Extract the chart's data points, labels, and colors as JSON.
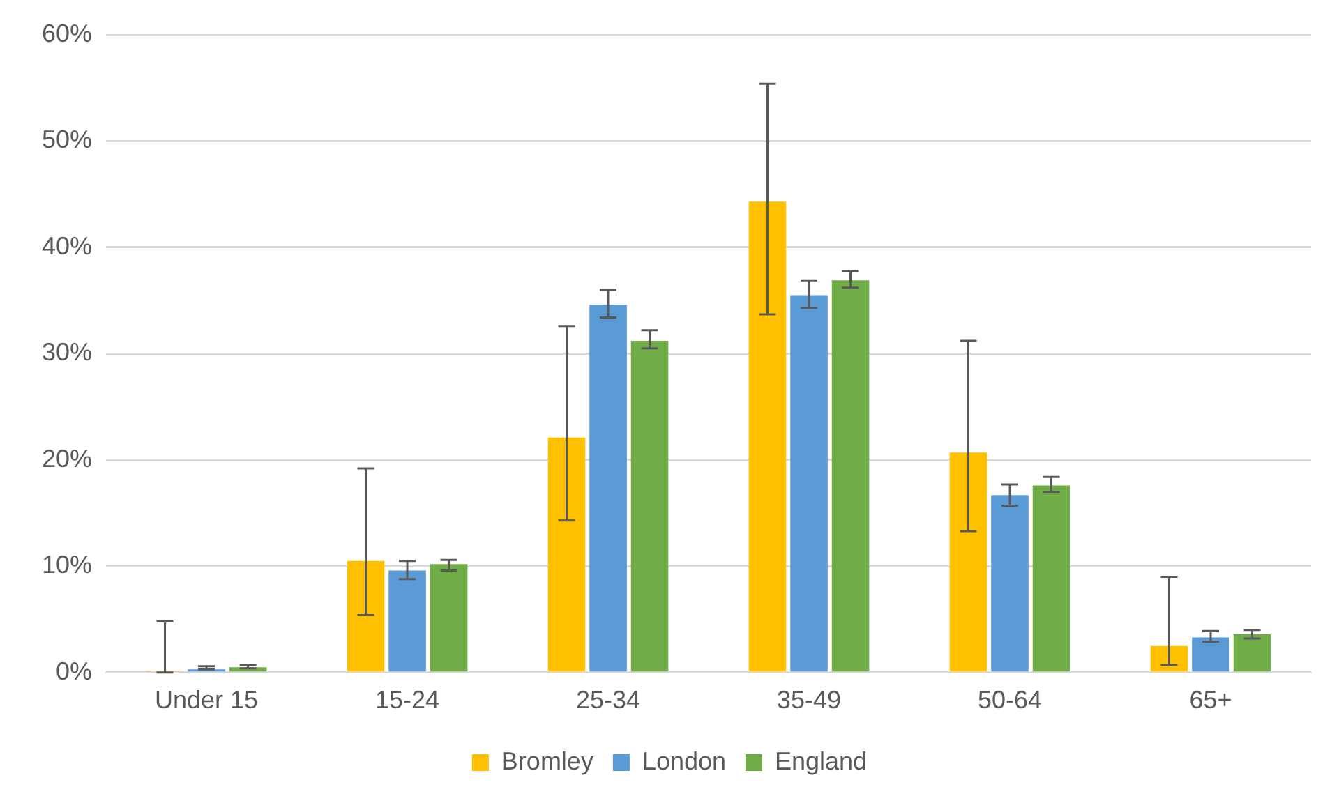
{
  "chart_data": {
    "type": "bar",
    "categories": [
      "Under 15",
      "15-24",
      "25-34",
      "35-49",
      "50-64",
      "65+"
    ],
    "series": [
      {
        "name": "Bromley",
        "color": "#ffc000",
        "values": [
          0,
          10.5,
          22.1,
          44.3,
          20.7,
          2.5
        ],
        "errors": [
          [
            0,
            4.8
          ],
          [
            5.4,
            19.2
          ],
          [
            14.3,
            32.6
          ],
          [
            33.7,
            55.4
          ],
          [
            13.3,
            31.2
          ],
          [
            0.7,
            9.0
          ]
        ]
      },
      {
        "name": "London",
        "color": "#5b9bd5",
        "values": [
          0.3,
          9.6,
          34.6,
          35.5,
          16.7,
          3.3
        ],
        "errors": [
          [
            0.3,
            0.6
          ],
          [
            8.8,
            10.5
          ],
          [
            33.4,
            36.0
          ],
          [
            34.3,
            36.9
          ],
          [
            15.7,
            17.7
          ],
          [
            2.9,
            3.9
          ]
        ]
      },
      {
        "name": "England",
        "color": "#70ad47",
        "values": [
          0.5,
          10.2,
          31.2,
          36.9,
          17.6,
          3.6
        ],
        "errors": [
          [
            0.4,
            0.7
          ],
          [
            9.6,
            10.6
          ],
          [
            30.5,
            32.2
          ],
          [
            36.2,
            37.8
          ],
          [
            17.0,
            18.4
          ],
          [
            3.2,
            4.0
          ]
        ]
      }
    ],
    "ylim": [
      0,
      60
    ],
    "yticks": [
      {
        "value": 0,
        "label": "0%"
      },
      {
        "value": 10,
        "label": "10%"
      },
      {
        "value": 20,
        "label": "20%"
      },
      {
        "value": 30,
        "label": "30%"
      },
      {
        "value": 40,
        "label": "40%"
      },
      {
        "value": 50,
        "label": "50%"
      },
      {
        "value": 60,
        "label": "60%"
      }
    ],
    "grid": "y",
    "legend": "bottom"
  }
}
